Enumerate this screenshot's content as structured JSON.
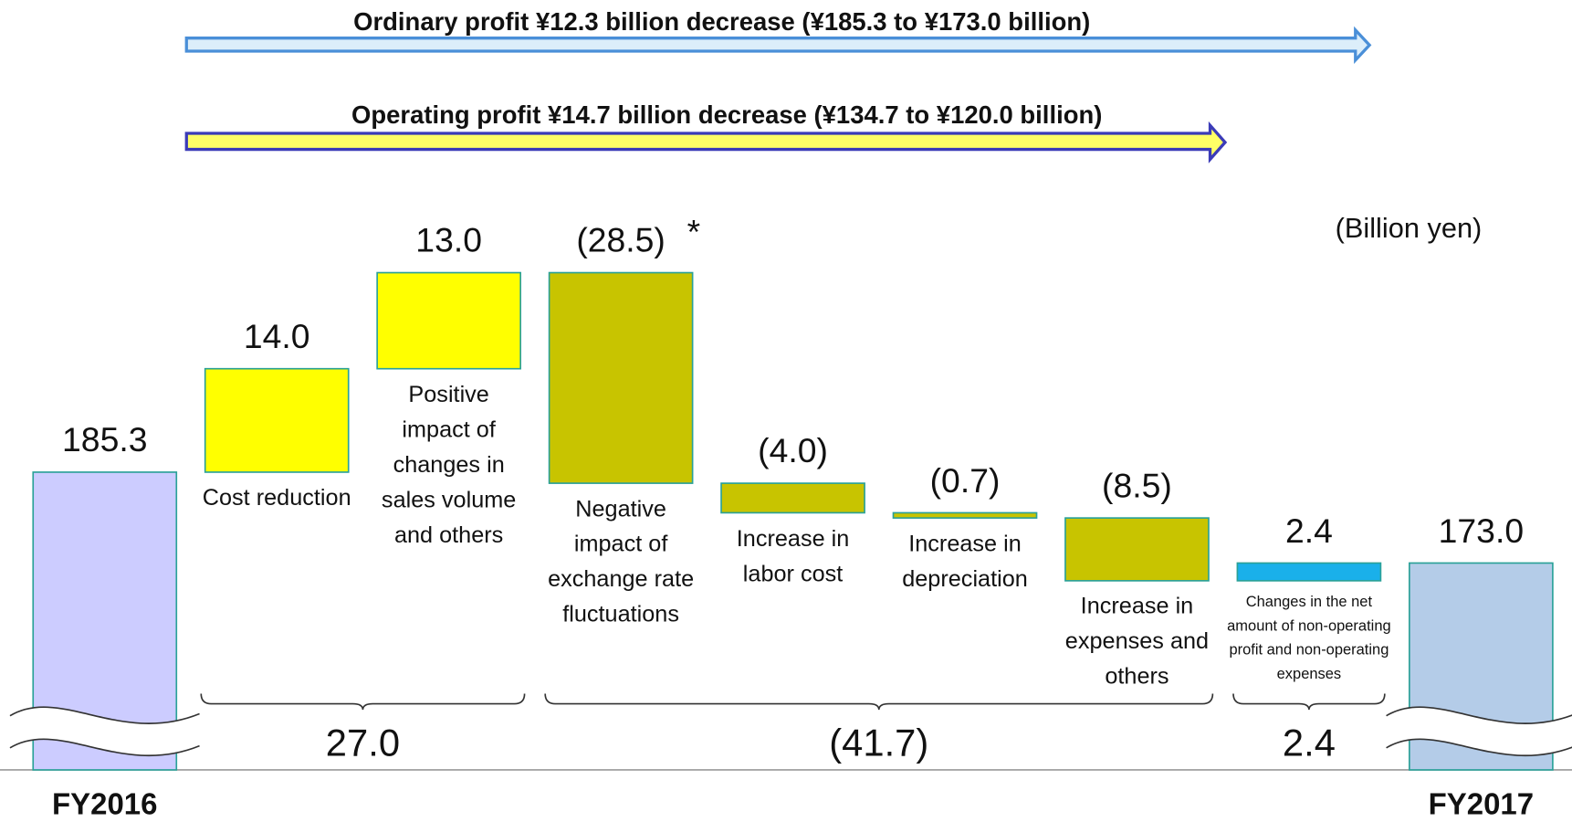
{
  "chart_data": {
    "type": "waterfall",
    "annotations": [
      "Ordinary profit ¥12.3 billion decrease (¥185.3 to ¥173.0 billion)",
      "Operating profit ¥14.7 billion decrease (¥134.7 to ¥120.0 billion)"
    ],
    "unit_label": "(Billion yen)",
    "footnote_mark": "*",
    "categories": [
      "FY2016",
      "Cost reduction",
      "Positive impact of changes in sales volume and others",
      "Negative impact of exchange rate fluctuations",
      "Increase in labor cost",
      "Increase in depreciation",
      "Increase in expenses and others",
      "Changes in the net amount of non-operating profit and non-operating expenses",
      "FY2017"
    ],
    "values": [
      185.3,
      14.0,
      13.0,
      -28.5,
      -4.0,
      -0.7,
      -8.5,
      2.4,
      173.0
    ],
    "value_labels": [
      "185.3",
      "14.0",
      "13.0",
      "(28.5)",
      "(4.0)",
      "(0.7)",
      "(8.5)",
      "2.4",
      "173.0"
    ],
    "colors": [
      "#ccccff",
      "#ffff00",
      "#ffff00",
      "#c8c400",
      "#c8c400",
      "#c8c400",
      "#c8c400",
      "#1ab0ea",
      "#b4cce8"
    ],
    "groups": [
      {
        "start": 1,
        "end": 2,
        "value": 27.0,
        "label": "27.0"
      },
      {
        "start": 3,
        "end": 6,
        "value": -41.7,
        "label": "(41.7)"
      },
      {
        "start": 7,
        "end": 7,
        "value": 2.4,
        "label": "2.4"
      }
    ]
  }
}
